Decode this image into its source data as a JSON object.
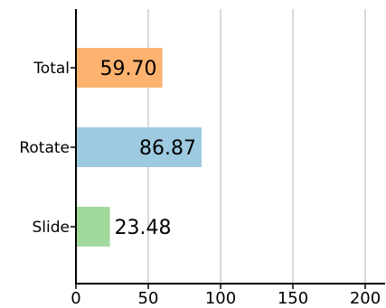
{
  "chart_data": {
    "type": "bar",
    "orientation": "horizontal",
    "categories": [
      "Total",
      "Rotate",
      "Slide"
    ],
    "values": [
      59.7,
      86.87,
      23.48
    ],
    "data_labels": [
      "59.70",
      "86.87",
      "23.48"
    ],
    "colors": [
      "#fdb26f",
      "#9ecae1",
      "#a0d99b"
    ],
    "xlim": [
      0,
      215
    ],
    "xticks": [
      0,
      50,
      100,
      150,
      200
    ],
    "xtick_labels": [
      "0",
      "50",
      "100",
      "150",
      "200"
    ],
    "grid": "vertical",
    "grid_color": "#d9d9d9",
    "title": "",
    "xlabel": "",
    "ylabel": ""
  }
}
